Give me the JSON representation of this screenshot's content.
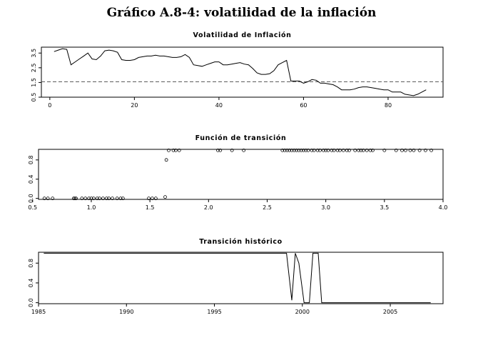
{
  "page_title": "Gráfico A.8-4: volatilidad de la inflación",
  "chart_data": [
    {
      "type": "line",
      "title": "Volatilidad de Inflación",
      "xlabel": "",
      "ylabel": "",
      "xlim": [
        -2,
        93
      ],
      "ylim": [
        0.5,
        3.9
      ],
      "x_ticks": [
        0,
        20,
        40,
        60,
        80
      ],
      "y_ticks": [
        0.5,
        1.5,
        2.5,
        3.5
      ],
      "y_tick_labels": [
        "0.5",
        "1.5",
        "2.5",
        "3.5"
      ],
      "reference_line": {
        "y": 1.55,
        "style": "dashed"
      },
      "grid": false,
      "series": [
        {
          "x": [
            1,
            2,
            3,
            4,
            5,
            6,
            7,
            8,
            9,
            10,
            11,
            12,
            13,
            14,
            15,
            16,
            17,
            18,
            19,
            20,
            21,
            22,
            23,
            24,
            25,
            26,
            27,
            28,
            29,
            30,
            31,
            32,
            33,
            34,
            35,
            36,
            37,
            38,
            39,
            40,
            41,
            42,
            43,
            44,
            45,
            46,
            47,
            48,
            49,
            50,
            51,
            52,
            53,
            54,
            55,
            56,
            57,
            58,
            59,
            60,
            61,
            62,
            63,
            64,
            65,
            66,
            67,
            68,
            69,
            70,
            71,
            72,
            73,
            74,
            75,
            76,
            77,
            78,
            79,
            80,
            81,
            82,
            83,
            84,
            85,
            86,
            87,
            88,
            89
          ],
          "y": [
            3.6,
            3.7,
            3.8,
            3.75,
            2.7,
            2.9,
            3.1,
            3.3,
            3.5,
            3.1,
            3.05,
            3.3,
            3.65,
            3.7,
            3.65,
            3.55,
            3.05,
            3.0,
            3.0,
            3.05,
            3.2,
            3.25,
            3.3,
            3.3,
            3.35,
            3.3,
            3.3,
            3.25,
            3.2,
            3.2,
            3.25,
            3.4,
            3.2,
            2.7,
            2.65,
            2.6,
            2.7,
            2.8,
            2.9,
            2.9,
            2.7,
            2.7,
            2.75,
            2.8,
            2.85,
            2.75,
            2.7,
            2.45,
            2.15,
            2.05,
            2.05,
            2.1,
            2.3,
            2.7,
            2.85,
            3.0,
            1.6,
            1.6,
            1.6,
            1.45,
            1.55,
            1.7,
            1.65,
            1.45,
            1.45,
            1.4,
            1.35,
            1.2,
            1.0,
            1.0,
            1.0,
            1.05,
            1.15,
            1.2,
            1.2,
            1.15,
            1.1,
            1.05,
            1.0,
            1.0,
            0.85,
            0.85,
            0.85,
            0.7,
            0.65,
            0.6,
            0.7,
            0.85,
            1.0
          ]
        }
      ]
    },
    {
      "type": "scatter",
      "title": "Función de transición",
      "xlabel": "",
      "ylabel": "",
      "xlim": [
        0.55,
        4.0
      ],
      "ylim": [
        -0.02,
        1.02
      ],
      "x_ticks": [
        0.5,
        1.0,
        1.5,
        2.0,
        2.5,
        3.0,
        3.5,
        4.0
      ],
      "x_tick_labels": [
        "0.5",
        "1.0",
        "1.5",
        "2.0",
        "2.5",
        "3.0",
        "3.5",
        "4.0"
      ],
      "y_ticks": [
        0.0,
        0.4,
        0.8
      ],
      "y_tick_labels": [
        "0.0",
        "0.4",
        "0.8"
      ],
      "grid": false,
      "series": [
        {
          "x": [
            0.6,
            0.63,
            0.67,
            0.85,
            0.86,
            0.87,
            0.92,
            0.95,
            0.98,
            1.0,
            1.02,
            1.05,
            1.07,
            1.1,
            1.13,
            1.15,
            1.18,
            1.22,
            1.25,
            1.27,
            1.49,
            1.52,
            1.55,
            1.63,
            1.64,
            1.66,
            1.7,
            1.72,
            1.75,
            2.08,
            2.1,
            2.2,
            2.3,
            2.63,
            2.65,
            2.67,
            2.69,
            2.71,
            2.73,
            2.75,
            2.77,
            2.79,
            2.81,
            2.83,
            2.85,
            2.88,
            2.9,
            2.93,
            2.95,
            2.98,
            3.0,
            3.02,
            3.05,
            3.07,
            3.1,
            3.12,
            3.15,
            3.18,
            3.2,
            3.25,
            3.28,
            3.3,
            3.32,
            3.35,
            3.38,
            3.4,
            3.5,
            3.6,
            3.65,
            3.68,
            3.72,
            3.75,
            3.8,
            3.85,
            3.9
          ],
          "y": [
            0.0,
            0.0,
            0.0,
            0.0,
            0.0,
            0.0,
            0.0,
            0.0,
            0.0,
            0.0,
            0.0,
            0.0,
            0.0,
            0.0,
            0.0,
            0.0,
            0.0,
            0.0,
            0.0,
            0.0,
            0.0,
            0.0,
            0.0,
            0.03,
            0.8,
            1.0,
            1.0,
            1.0,
            1.0,
            1.0,
            1.0,
            1.0,
            1.0,
            1.0,
            1.0,
            1.0,
            1.0,
            1.0,
            1.0,
            1.0,
            1.0,
            1.0,
            1.0,
            1.0,
            1.0,
            1.0,
            1.0,
            1.0,
            1.0,
            1.0,
            1.0,
            1.0,
            1.0,
            1.0,
            1.0,
            1.0,
            1.0,
            1.0,
            1.0,
            1.0,
            1.0,
            1.0,
            1.0,
            1.0,
            1.0,
            1.0,
            1.0,
            1.0,
            1.0,
            1.0,
            1.0,
            1.0,
            1.0,
            1.0,
            1.0
          ]
        }
      ]
    },
    {
      "type": "line",
      "title": "Transición histórico",
      "xlabel": "",
      "ylabel": "",
      "xlim": [
        1985,
        2008
      ],
      "ylim": [
        -0.02,
        1.02
      ],
      "x_ticks": [
        1985,
        1990,
        1995,
        2000,
        2005
      ],
      "x_tick_labels": [
        "1985",
        "1990",
        "1995",
        "2000",
        "2005"
      ],
      "y_ticks": [
        0.0,
        0.4,
        0.8
      ],
      "y_tick_labels": [
        "0.0",
        "0.4",
        "0.8"
      ],
      "grid": false,
      "series": [
        {
          "x": [
            1985.3,
            1999.1,
            1999.4,
            1999.6,
            1999.8,
            2000.1,
            2000.4,
            2000.6,
            2000.9,
            2001.1,
            2007.3
          ],
          "y": [
            1.0,
            1.0,
            0.05,
            1.0,
            0.8,
            0.0,
            0.0,
            1.0,
            1.0,
            0.0,
            0.0
          ]
        }
      ]
    }
  ]
}
